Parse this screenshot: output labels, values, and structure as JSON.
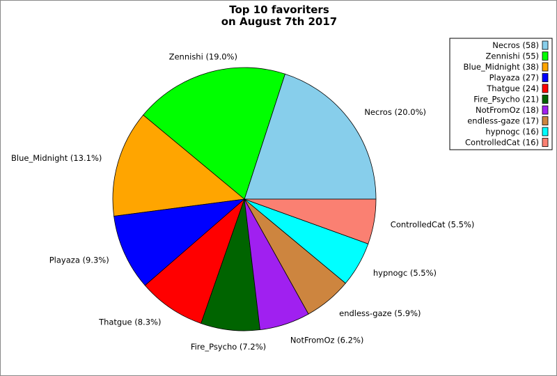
{
  "chart_data": {
    "type": "pie",
    "title": [
      "Top 10 favoriters",
      "on August 7th 2017"
    ],
    "categories": [
      "Necros",
      "Zennishi",
      "Blue_Midnight",
      "Playaza",
      "Thatgue",
      "Fire_Psycho",
      "NotFromOz",
      "endless-gaze",
      "hypnogc",
      "ControlledCat"
    ],
    "values": [
      58,
      55,
      38,
      27,
      24,
      21,
      18,
      17,
      16,
      16
    ],
    "slice_labels": [
      "Necros (20.0%)",
      "Zennishi (19.0%)",
      "Blue_Midnight (13.1%)",
      "Playaza (9.3%)",
      "Thatgue (8.3%)",
      "Fire_Psycho (7.2%)",
      "NotFromOz (6.2%)",
      "endless-gaze (5.9%)",
      "hypnogc (5.5%)",
      "ControlledCat (5.5%)"
    ],
    "legend_entries": [
      "Necros (58)",
      "Zennishi (55)",
      "Blue_Midnight (38)",
      "Playaza (27)",
      "Thatgue (24)",
      "Fire_Psycho (21)",
      "NotFromOz (18)",
      "endless-gaze (17)",
      "hypnogc (16)",
      "ControlledCat (16)"
    ],
    "colors": [
      "#87ceeb",
      "#00ff00",
      "#ffa500",
      "#0000ff",
      "#ff0000",
      "#006400",
      "#a020f0",
      "#cd853f",
      "#00ffff",
      "#fa8072"
    ],
    "start_angle_deg": 0,
    "direction": "counterclockwise",
    "legend_placement": "top-right"
  }
}
